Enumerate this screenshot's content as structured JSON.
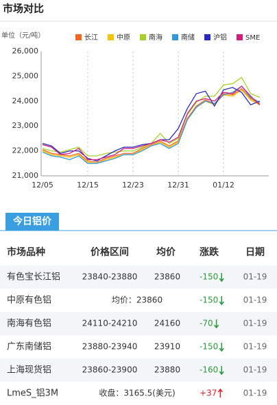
{
  "header": {
    "title": "市场对比"
  },
  "chart_data": {
    "type": "line",
    "y_label": "单位（元/吨）",
    "categories": [
      "12/05",
      null,
      null,
      null,
      null,
      "12/15",
      null,
      null,
      null,
      null,
      "12/23",
      null,
      null,
      null,
      null,
      "12/31",
      null,
      null,
      null,
      null,
      "01/12",
      null,
      null,
      null,
      null
    ],
    "ylim": [
      21000,
      26000
    ],
    "yticks": [
      {
        "value": 21000,
        "label": "21,000"
      },
      {
        "value": 22000,
        "label": "22,000"
      },
      {
        "value": 23000,
        "label": "23,000"
      },
      {
        "value": 24000,
        "label": "24,000"
      },
      {
        "value": 25000,
        "label": "25,000"
      },
      {
        "value": 26000,
        "label": "26,000"
      }
    ],
    "grid": false,
    "series": [
      {
        "name": "长江",
        "color": "#f26522",
        "values": [
          22050,
          21900,
          21850,
          21800,
          21900,
          21600,
          21550,
          21700,
          21800,
          21900,
          21900,
          22100,
          22250,
          22400,
          22200,
          22400,
          23300,
          23800,
          24050,
          23900,
          24300,
          24250,
          24500,
          24100,
          23900
        ]
      },
      {
        "name": "中原",
        "color": "#f5c400",
        "values": [
          22000,
          21850,
          21800,
          21750,
          21850,
          21550,
          21500,
          21650,
          21750,
          21850,
          21850,
          22050,
          22200,
          22350,
          22150,
          22350,
          23250,
          23750,
          24000,
          23850,
          24250,
          24200,
          24450,
          24050,
          23850
        ]
      },
      {
        "name": "南海",
        "color": "#a6d12a",
        "values": [
          22100,
          22000,
          21950,
          22050,
          22150,
          21800,
          21800,
          21900,
          21950,
          22000,
          22000,
          22150,
          22300,
          22700,
          22300,
          22500,
          23450,
          23950,
          24200,
          24200,
          24650,
          24700,
          24950,
          24300,
          24150
        ]
      },
      {
        "name": "南储",
        "color": "#3497d8",
        "values": [
          21950,
          21800,
          21750,
          21650,
          21800,
          21500,
          21500,
          21600,
          21700,
          21850,
          21850,
          22000,
          22200,
          22300,
          22100,
          22300,
          23250,
          23750,
          24000,
          23900,
          24250,
          24350,
          24600,
          24150,
          23950
        ]
      },
      {
        "name": "沪铝",
        "color": "#2a2abf",
        "values": [
          22300,
          22200,
          21900,
          22000,
          22000,
          21700,
          21600,
          21800,
          22000,
          22150,
          22150,
          22250,
          22300,
          22450,
          22450,
          22900,
          23700,
          24300,
          24400,
          23800,
          24450,
          24550,
          24350,
          23850,
          24000
        ]
      },
      {
        "name": "SME",
        "color": "#d0207a",
        "values": [
          22250,
          22150,
          21850,
          21900,
          22100,
          21650,
          21650,
          21750,
          21850,
          22100,
          22100,
          22200,
          22300,
          22450,
          22350,
          22550,
          23500,
          24000,
          24100,
          24000,
          24350,
          24300,
          24600,
          24200,
          23850
        ]
      }
    ]
  },
  "table": {
    "tab": "今日铝价",
    "columns": [
      "市场品种",
      "价格区间",
      "均价",
      "涨跌",
      "日期"
    ],
    "rows": [
      {
        "market": "有色宝长江铝",
        "range": "23840-23880",
        "avg": "23860",
        "change": "-150",
        "date": "01-19"
      },
      {
        "market": "中原有色铝",
        "summary": "均价：23860",
        "change": "-150",
        "date": "01-19"
      },
      {
        "market": "南海有色铝",
        "range": "24110-24210",
        "avg": "24160",
        "change": "-70",
        "date": "01-19"
      },
      {
        "market": "广东南储铝",
        "range": "23880-23940",
        "avg": "23910",
        "change": "-150",
        "date": "01-19"
      },
      {
        "market": "上海现货铝",
        "range": "23860-23900",
        "avg": "23880",
        "change": "-160",
        "date": "01-19"
      },
      {
        "market": "LmeS_铝3M",
        "summary": "收盘：3165.5(美元)",
        "change": "+37",
        "date": "01-19"
      }
    ]
  }
}
